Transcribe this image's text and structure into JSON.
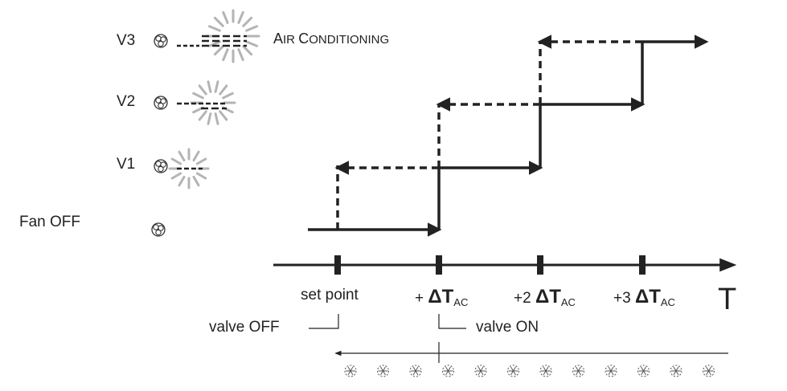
{
  "levels": {
    "v3": "V3",
    "v2": "V2",
    "v1": "V1",
    "fan_off": "Fan OFF"
  },
  "air_conditioning": {
    "cap1": "A",
    "rest1": "IR ",
    "cap2": "C",
    "rest2": "ONDITIONING"
  },
  "axis": {
    "label": "T",
    "ticks": [
      {
        "prefix": "",
        "delta": "",
        "sub": "",
        "text": "set point"
      },
      {
        "prefix": "+ ",
        "delta": "ΔT",
        "sub": "AC",
        "text": ""
      },
      {
        "prefix": "+2 ",
        "delta": "ΔT",
        "sub": "AC",
        "text": ""
      },
      {
        "prefix": "+3 ",
        "delta": "ΔT",
        "sub": "AC",
        "text": ""
      }
    ]
  },
  "valve": {
    "off_label": "valve OFF",
    "on_label": "valve ON"
  },
  "icons": {
    "fan": "fan-icon",
    "sun": "cooling-burst-icon",
    "snowflake": "snowflake-icon"
  },
  "colors": {
    "line": "#222222",
    "burst": "#b4b4b4"
  }
}
